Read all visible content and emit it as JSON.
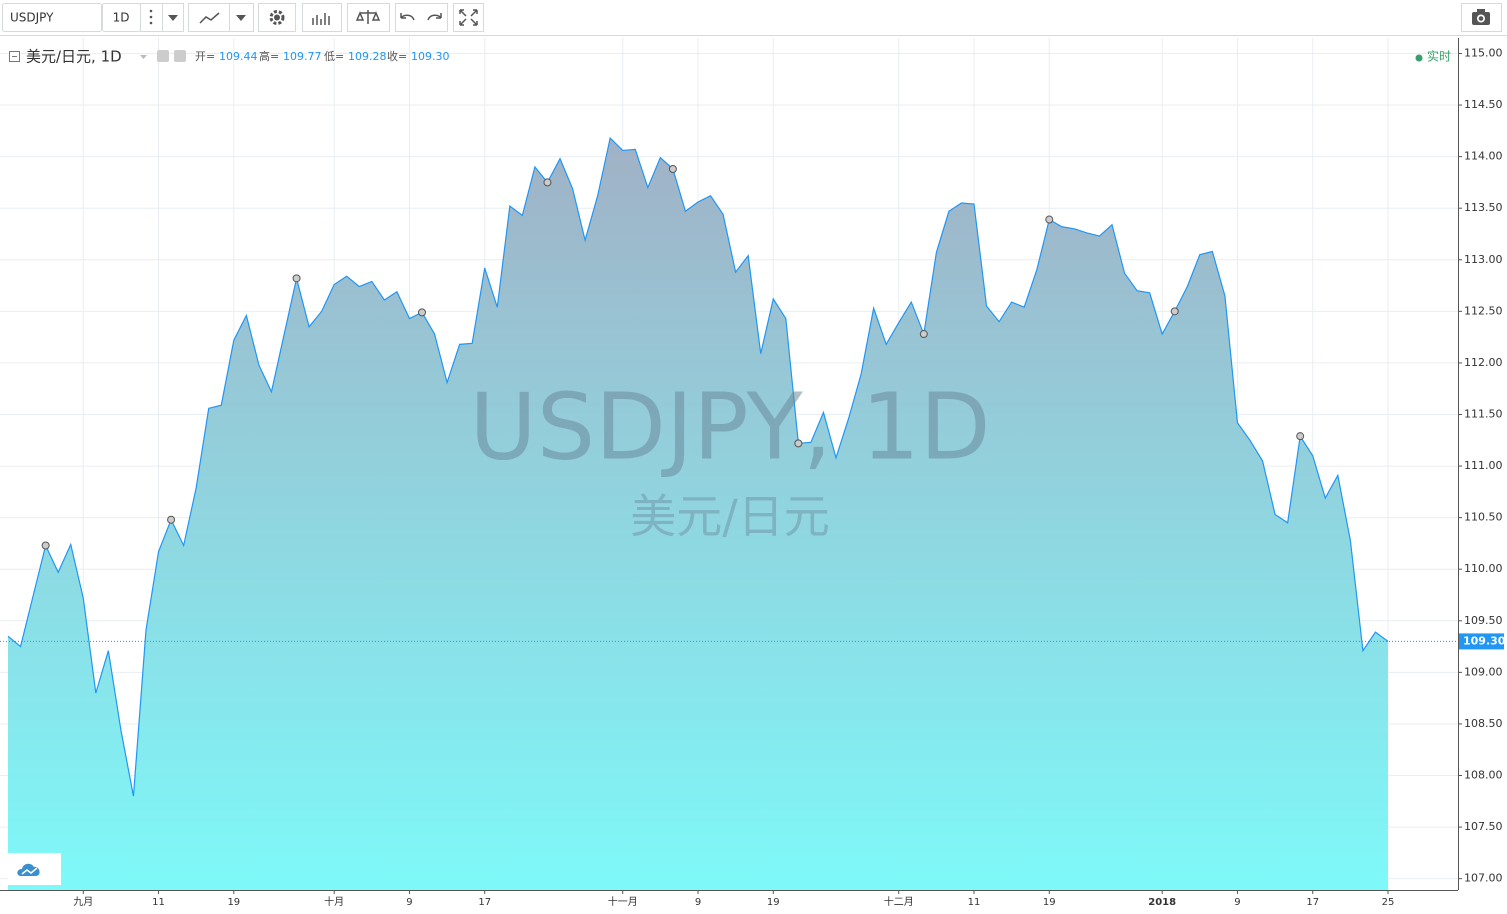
{
  "toolbar": {
    "symbol": "USDJPY",
    "interval": "1D"
  },
  "legend": {
    "title": "美元/日元, 1D",
    "ohlc": [
      {
        "key": "开=",
        "value": "109.44"
      },
      {
        "key": "高=",
        "value": "109.77"
      },
      {
        "key": "低=",
        "value": "109.28"
      },
      {
        "key": "收=",
        "value": "109.30"
      }
    ],
    "status": "实时"
  },
  "watermark": {
    "symbol": "USDJPY, 1D",
    "description": "美元/日元"
  },
  "chart_data": {
    "type": "area",
    "categories": [
      null,
      null,
      null,
      null,
      null,
      null,
      "九月",
      null,
      null,
      null,
      null,
      null,
      "11",
      null,
      null,
      null,
      null,
      null,
      "19",
      null,
      null,
      null,
      null,
      null,
      null,
      null,
      "十月",
      null,
      null,
      null,
      null,
      null,
      "9",
      null,
      null,
      null,
      null,
      null,
      "17",
      null,
      null,
      null,
      null,
      null,
      null,
      null,
      null,
      null,
      null,
      "十一月",
      null,
      null,
      null,
      null,
      null,
      "9",
      null,
      null,
      null,
      null,
      null,
      "19",
      null,
      null,
      null,
      null,
      null,
      null,
      null,
      null,
      null,
      "十二月",
      null,
      null,
      null,
      null,
      null,
      "11",
      null,
      null,
      null,
      null,
      null,
      "19",
      null,
      null,
      null,
      null,
      null,
      null,
      null,
      null,
      "2018",
      null,
      null,
      null,
      null,
      null,
      "9",
      null,
      null,
      null,
      null,
      null,
      "17",
      null,
      null,
      null,
      null,
      null,
      "25"
    ],
    "values": [
      109.35,
      109.25,
      109.74,
      110.23,
      109.97,
      110.24,
      109.72,
      108.8,
      109.21,
      108.44,
      107.8,
      109.41,
      110.17,
      110.48,
      110.23,
      110.79,
      111.56,
      111.59,
      112.22,
      112.46,
      111.98,
      111.72,
      112.27,
      112.82,
      112.35,
      112.5,
      112.76,
      112.84,
      112.74,
      112.79,
      112.61,
      112.69,
      112.43,
      112.49,
      112.28,
      111.81,
      112.18,
      112.19,
      112.92,
      112.54,
      113.52,
      113.43,
      113.9,
      113.75,
      113.98,
      113.69,
      113.19,
      113.62,
      114.18,
      114.06,
      114.07,
      113.7,
      113.99,
      113.88,
      113.47,
      113.56,
      113.62,
      113.44,
      112.88,
      113.04,
      112.09,
      112.62,
      112.43,
      111.22,
      111.23,
      111.52,
      111.08,
      111.46,
      111.89,
      112.53,
      112.18,
      112.39,
      112.59,
      112.28,
      113.07,
      113.47,
      113.55,
      113.54,
      112.55,
      112.4,
      112.59,
      112.54,
      112.9,
      113.39,
      113.32,
      113.3,
      113.26,
      113.23,
      113.34,
      112.87,
      112.7,
      112.68,
      112.28,
      112.5,
      112.74,
      113.05,
      113.08,
      112.65,
      111.42,
      111.25,
      111.05,
      110.53,
      110.45,
      111.29,
      111.1,
      110.69,
      110.91,
      110.28,
      109.21,
      109.39,
      109.3
    ],
    "color": "#2196f3",
    "fill_top": "#a1b1c6",
    "fill_bottom": "#7ef9f9",
    "ylim": [
      106.89,
      115.15
    ],
    "yticks": [
      {
        "value": 107,
        "label": "107.00"
      },
      {
        "value": 107.5,
        "label": "107.50"
      },
      {
        "value": 108,
        "label": "108.00"
      },
      {
        "value": 108.5,
        "label": "108.50"
      },
      {
        "value": 109,
        "label": "109.00"
      },
      {
        "value": 109.5,
        "label": "109.50"
      },
      {
        "value": 110,
        "label": "110.00"
      },
      {
        "value": 110.5,
        "label": "110.50"
      },
      {
        "value": 111,
        "label": "111.00"
      },
      {
        "value": 111.5,
        "label": "111.50"
      },
      {
        "value": 112,
        "label": "112.00"
      },
      {
        "value": 112.5,
        "label": "112.50"
      },
      {
        "value": 113,
        "label": "113.00"
      },
      {
        "value": 113.5,
        "label": "113.50"
      },
      {
        "value": 114,
        "label": "114.00"
      },
      {
        "value": 114.5,
        "label": "114.50"
      },
      {
        "value": 115,
        "label": "115.00"
      }
    ],
    "grid": true,
    "last_value": {
      "value": 109.3,
      "label": "109.30"
    }
  }
}
